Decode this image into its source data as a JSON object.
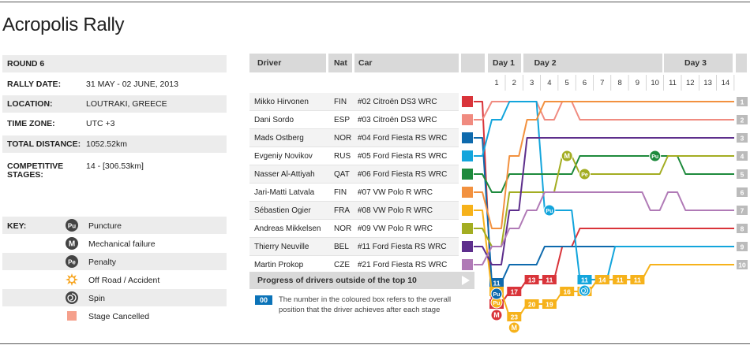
{
  "title": "Acropolis Rally",
  "info": [
    {
      "label": "ROUND 6",
      "value": ""
    },
    {
      "label": "RALLY DATE:",
      "value": "31 MAY - 02 JUNE, 2013"
    },
    {
      "label": "LOCATION:",
      "value": "LOUTRAKI, GREECE"
    },
    {
      "label": "TIME ZONE:",
      "value": "UTC +3"
    },
    {
      "label": "TOTAL DISTANCE:",
      "value": "1052.52km"
    },
    {
      "label": "COMPETITIVE STAGES:",
      "value": "14 - [306.53km]"
    }
  ],
  "key": {
    "label": "KEY:",
    "items": [
      {
        "icon": "puncture-icon",
        "glyph": "Pu",
        "text": "Puncture"
      },
      {
        "icon": "mechanical-failure-icon",
        "glyph": "M",
        "text": "Mechanical failure"
      },
      {
        "icon": "penalty-icon",
        "glyph": "Pe",
        "text": "Penalty"
      },
      {
        "icon": "off-road-accident-icon",
        "glyph": "",
        "text": "Off Road / Accident"
      },
      {
        "icon": "spin-icon",
        "glyph": "",
        "text": "Spin"
      },
      {
        "icon": "stage-cancelled-icon",
        "glyph": "",
        "text": "Stage Cancelled"
      }
    ]
  },
  "table_headers": {
    "driver": "Driver",
    "nat": "Nat",
    "car": "Car"
  },
  "days": [
    {
      "label": "Day 1",
      "from": 1,
      "to": 2
    },
    {
      "label": "Day 2",
      "from": 3,
      "to": 10
    },
    {
      "label": "Day 3",
      "from": 11,
      "to": 14
    }
  ],
  "progress_label": "Progress of drivers outside of the top 10",
  "note_box": "00",
  "note_text": "The number in the coloured box refers to the overall position that the driver achieves after each stage",
  "colors": {
    "hirvonen": "#d9343a",
    "sordo": "#f08b80",
    "ostberg": "#0e6aad",
    "novikov": "#13a5dc",
    "al_attiyah": "#1e8a3c",
    "latvala": "#f2913f",
    "ogier": "#f6b21b",
    "mikkelsen": "#a3ad22",
    "neuville": "#5d2e8c",
    "prokop": "#b07ab6"
  },
  "chart_data": {
    "type": "line",
    "title": "",
    "xlabel": "",
    "ylabel": "",
    "x": [
      1,
      2,
      3,
      4,
      5,
      6,
      7,
      8,
      9,
      10,
      11,
      12,
      13,
      14
    ],
    "ylim": [
      1,
      10
    ],
    "y_inverted": true,
    "drivers": [
      {
        "name": "Mikko Hirvonen",
        "nat": "FIN",
        "car": "#02 Citroën DS3 WRC",
        "color": "#d9343a",
        "positions": [
          22,
          17,
          13,
          11,
          9,
          8,
          8,
          8,
          8,
          8,
          8,
          8,
          8,
          8
        ]
      },
      {
        "name": "Dani Sordo",
        "nat": "ESP",
        "car": "#03 Citroën DS3 WRC",
        "color": "#f08b80",
        "positions": [
          1,
          1,
          1,
          2,
          1,
          2,
          2,
          2,
          2,
          2,
          2,
          2,
          2,
          2
        ]
      },
      {
        "name": "Mads Ostberg",
        "nat": "NOR",
        "car": "#04 Ford Fiesta RS WRC",
        "color": "#0e6aad",
        "positions": [
          11,
          10,
          10,
          9,
          9,
          9,
          9,
          9,
          9,
          9,
          9,
          9,
          9,
          9
        ]
      },
      {
        "name": "Evgeniy Novikov",
        "nat": "RUS",
        "car": "#05 Ford Fiesta RS WRC",
        "color": "#13a5dc",
        "positions": [
          2,
          1,
          1,
          7,
          7,
          11,
          11,
          9,
          9,
          9,
          9,
          9,
          9,
          9
        ]
      },
      {
        "name": "Nasser Al-Attiyah",
        "nat": "QAT",
        "car": "#06 Ford Fiesta RS WRC",
        "color": "#1e8a3c",
        "positions": [
          6,
          5,
          5,
          5,
          5,
          4,
          4,
          4,
          4,
          4,
          4,
          5,
          5,
          5
        ]
      },
      {
        "name": "Jari-Matti Latvala",
        "nat": "FIN",
        "car": "#07 VW Polo R WRC",
        "color": "#f2913f",
        "positions": [
          8,
          4,
          2,
          1,
          1,
          1,
          1,
          1,
          1,
          1,
          1,
          1,
          1,
          1
        ]
      },
      {
        "name": "Sébastien Ogier",
        "nat": "FRA",
        "car": "#08 VW Polo R WRC",
        "color": "#f6b21b",
        "positions": [
          18,
          23,
          20,
          19,
          16,
          15,
          14,
          11,
          11,
          10,
          10,
          10,
          10,
          10
        ]
      },
      {
        "name": "Andreas Mikkelsen",
        "nat": "NOR",
        "car": "#09 VW Polo R WRC",
        "color": "#a3ad22",
        "positions": [
          9,
          6,
          6,
          6,
          4,
          5,
          5,
          5,
          5,
          5,
          4,
          4,
          4,
          4
        ]
      },
      {
        "name": "Thierry Neuville",
        "nat": "BEL",
        "car": "#11 Ford Fiesta RS WRC",
        "color": "#5d2e8c",
        "positions": [
          10,
          7,
          3,
          3,
          3,
          3,
          3,
          3,
          3,
          3,
          3,
          3,
          3,
          3
        ]
      },
      {
        "name": "Martin Prokop",
        "nat": "CZE",
        "car": "#21 Ford Fiesta RS WRC",
        "color": "#b07ab6",
        "positions": [
          9,
          8,
          7,
          6,
          6,
          6,
          6,
          6,
          6,
          7,
          6,
          7,
          7,
          7
        ]
      }
    ],
    "events": [
      {
        "driver": "Mikko Hirvonen",
        "stage": 1,
        "type": "mechanical-failure",
        "glyph": "M"
      },
      {
        "driver": "Sébastien Ogier",
        "stage": 1,
        "type": "puncture",
        "glyph": "Pu"
      },
      {
        "driver": "Sébastien Ogier",
        "stage": 2,
        "type": "mechanical-failure",
        "glyph": "M"
      },
      {
        "driver": "Mads Ostberg",
        "stage": 1,
        "type": "puncture",
        "glyph": "Pu"
      },
      {
        "driver": "Evgeniy Novikov",
        "stage": 4,
        "type": "puncture",
        "glyph": "Pu"
      },
      {
        "driver": "Andreas Mikkelsen",
        "stage": 5,
        "type": "mechanical-failure",
        "glyph": "M"
      },
      {
        "driver": "Andreas Mikkelsen",
        "stage": 6,
        "type": "penalty",
        "glyph": "Pe"
      },
      {
        "driver": "Nasser Al-Attiyah",
        "stage": 10,
        "type": "puncture",
        "glyph": "Pu"
      },
      {
        "driver": "Evgeniy Novikov",
        "stage": 6,
        "type": "spin",
        "glyph": ""
      }
    ]
  }
}
